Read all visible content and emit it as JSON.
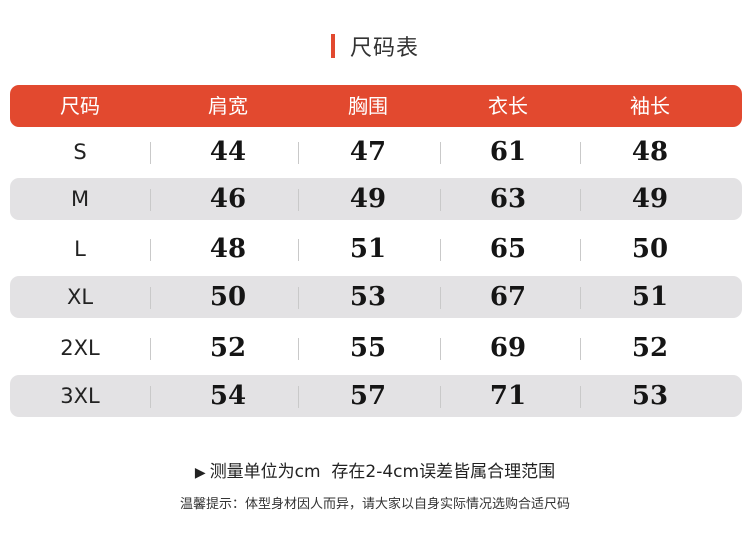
{
  "title": "尺码表",
  "header": [
    "尺码",
    "肩宽",
    "胸围",
    "衣长",
    "袖长"
  ],
  "rows": [
    {
      "size": "S",
      "shoulder": "44",
      "chest": "47",
      "length": "61",
      "sleeve": "48"
    },
    {
      "size": "M",
      "shoulder": "46",
      "chest": "49",
      "length": "63",
      "sleeve": "49"
    },
    {
      "size": "L",
      "shoulder": "48",
      "chest": "51",
      "length": "65",
      "sleeve": "50"
    },
    {
      "size": "XL",
      "shoulder": "50",
      "chest": "53",
      "length": "67",
      "sleeve": "51"
    },
    {
      "size": "2XL",
      "shoulder": "52",
      "chest": "55",
      "length": "69",
      "sleeve": "52"
    },
    {
      "size": "3XL",
      "shoulder": "54",
      "chest": "57",
      "length": "71",
      "sleeve": "53"
    }
  ],
  "note": "测量单位为cm  存在2-4cm误差皆属合理范围",
  "tip": "温馨提示：体型身材因人而异，请大家以自身实际情况选购合适尺码",
  "colors": {
    "accent": "#e2492f",
    "row_shade": "#e3e2e4"
  }
}
